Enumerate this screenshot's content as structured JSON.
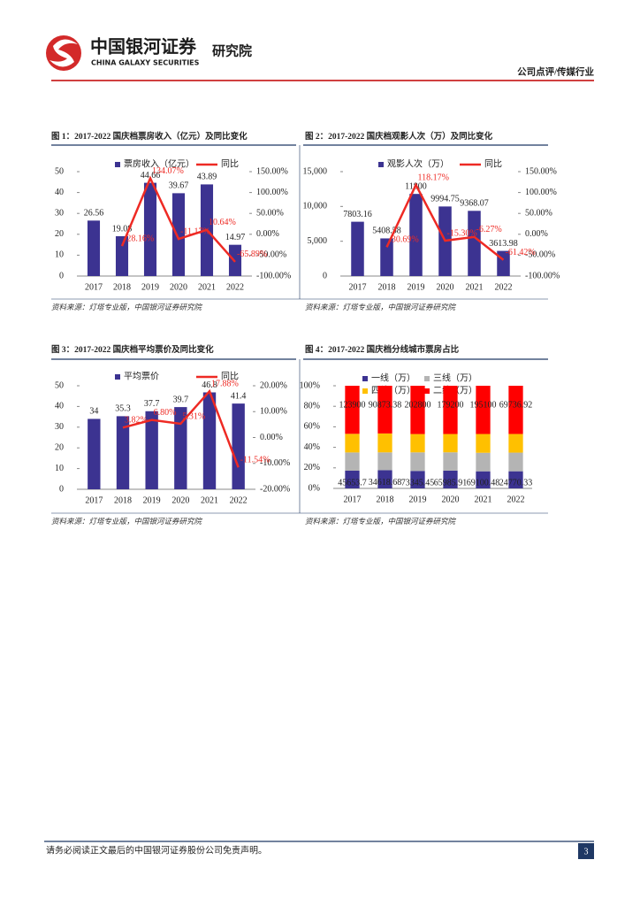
{
  "header": {
    "brand": "中国银河证券",
    "institute": "研究院",
    "brand_en": "CHINA GALAXY SECURITIES",
    "section": "公司点评/传媒行业"
  },
  "footer": {
    "disclaimer": "请务必阅读正文最后的中国银河证券股份公司免责声明。",
    "page": "3"
  },
  "chart_data": [
    {
      "type": "bar",
      "title": "图 1：2017-2022 国庆档票房收入（亿元）及同比变化",
      "source": "资料来源：灯塔专业版，中国银河证券研究院",
      "categories": [
        "2017",
        "2018",
        "2019",
        "2020",
        "2021",
        "2022"
      ],
      "series": [
        {
          "name": "票房收入（亿元）",
          "type": "bar",
          "color": "#3c3391",
          "values": [
            26.56,
            19.08,
            44.66,
            39.67,
            43.89,
            14.97
          ]
        },
        {
          "name": "同比",
          "type": "line",
          "axis": "y2",
          "color": "#ee2a24",
          "values": [
            null,
            -28.16,
            134.07,
            -11.17,
            10.64,
            -65.89
          ],
          "value_labels": [
            null,
            "-28.16%",
            "134.07%",
            "-11.17%",
            "10.64%",
            "-65.89%"
          ]
        }
      ],
      "ylim": [
        0,
        50
      ],
      "yticks": [
        0,
        10,
        20,
        30,
        40,
        50
      ],
      "y2lim": [
        -100,
        150
      ],
      "y2ticks": [
        {
          "value": -100,
          "label": "-100.00%"
        },
        {
          "value": -50,
          "label": "-50.00%"
        },
        {
          "value": 0,
          "label": "0.00%"
        },
        {
          "value": 50,
          "label": "50.00%"
        },
        {
          "value": 100,
          "label": "100.00%"
        },
        {
          "value": 150,
          "label": "150.00%"
        }
      ]
    },
    {
      "type": "bar",
      "title": "图 2：2017-2022 国庆档观影人次（万）及同比变化",
      "source": "资料来源：灯塔专业版，中国银河证券研究院",
      "categories": [
        "2017",
        "2018",
        "2019",
        "2020",
        "2021",
        "2022"
      ],
      "series": [
        {
          "name": "观影人次（万）",
          "type": "bar",
          "color": "#3c3391",
          "values": [
            7803.16,
            5408.58,
            11800,
            9994.75,
            9368.07,
            3613.98
          ]
        },
        {
          "name": "同比",
          "type": "line",
          "axis": "y2",
          "color": "#ee2a24",
          "values": [
            null,
            -30.69,
            118.17,
            -15.3,
            -6.27,
            -61.42
          ],
          "value_labels": [
            null,
            "-30.69%",
            "118.17%",
            "-15.30%",
            "-6.27%",
            "-61.42%"
          ]
        }
      ],
      "ylim": [
        0,
        15000
      ],
      "yticks": [
        0,
        {
          "value": 5000,
          "label": "5,000"
        },
        {
          "value": 10000,
          "label": "10,000"
        },
        {
          "value": 15000,
          "label": "15,000"
        }
      ],
      "y2lim": [
        -100,
        150
      ],
      "y2ticks": [
        {
          "value": -100,
          "label": "-100.00%"
        },
        {
          "value": -50,
          "label": "-50.00%"
        },
        {
          "value": 0,
          "label": "0.00%"
        },
        {
          "value": 50,
          "label": "50.00%"
        },
        {
          "value": 100,
          "label": "100.00%"
        },
        {
          "value": 150,
          "label": "150.00%"
        }
      ]
    },
    {
      "type": "bar",
      "title": "图 3：2017-2022 国庆档平均票价及同比变化",
      "source": "资料来源：灯塔专业版，中国银河证券研究院",
      "categories": [
        "2017",
        "2018",
        "2019",
        "2020",
        "2021",
        "2022"
      ],
      "series": [
        {
          "name": "平均票价",
          "type": "bar",
          "color": "#3c3391",
          "values": [
            34,
            35.3,
            37.7,
            39.7,
            46.8,
            41.4
          ]
        },
        {
          "name": "同比",
          "type": "line",
          "axis": "y2",
          "color": "#ee2a24",
          "values": [
            null,
            3.82,
            6.8,
            5.31,
            17.88,
            -11.54
          ],
          "value_labels": [
            null,
            "3.82%",
            "6.80%",
            "5.31%",
            "17.88%",
            "-11.54%"
          ]
        }
      ],
      "ylim": [
        0,
        50
      ],
      "yticks": [
        0,
        10,
        20,
        30,
        40,
        50
      ],
      "y2lim": [
        -20,
        20
      ],
      "y2ticks": [
        {
          "value": -20,
          "label": "-20.00%"
        },
        {
          "value": -10,
          "label": "-10.00%"
        },
        {
          "value": 0,
          "label": "0.00%"
        },
        {
          "value": 10,
          "label": "10.00%"
        },
        {
          "value": 20,
          "label": "20.00%"
        }
      ]
    },
    {
      "type": "stacked_percent",
      "title": "图 4：2017-2022 国庆档分线城市票房占比",
      "source": "资料来源：灯塔专业版，中国银河证券研究院",
      "categories": [
        "2017",
        "2018",
        "2019",
        "2020",
        "2021",
        "2022"
      ],
      "series": [
        {
          "name": "一线（万）",
          "color": "#3c3391",
          "data_labels": true,
          "values": [
            45653.7,
            34618.68,
            73345.45,
            65985.91,
            69100.48,
            24770.33
          ]
        },
        {
          "name": "三线（万）",
          "color": "#b4b4b4",
          "values": [
            47000,
            34000,
            78000,
            68000,
            75000,
            27000
          ]
        },
        {
          "name": "四线（万）",
          "color": "#ffc000",
          "values": [
            48000,
            36000,
            77000,
            68000,
            76000,
            27000
          ]
        },
        {
          "name": "二线（万）",
          "color": "#ff0000",
          "data_labels": true,
          "values": [
            123900,
            90873.38,
            202800,
            179200,
            195100,
            69736.92
          ]
        }
      ],
      "ylim": [
        0,
        100
      ],
      "yticks": [
        {
          "value": 0,
          "label": "0%"
        },
        {
          "value": 20,
          "label": "20%"
        },
        {
          "value": 40,
          "label": "40%"
        },
        {
          "value": 60,
          "label": "60%"
        },
        {
          "value": 80,
          "label": "80%"
        },
        {
          "value": 100,
          "label": "100%"
        }
      ]
    }
  ]
}
